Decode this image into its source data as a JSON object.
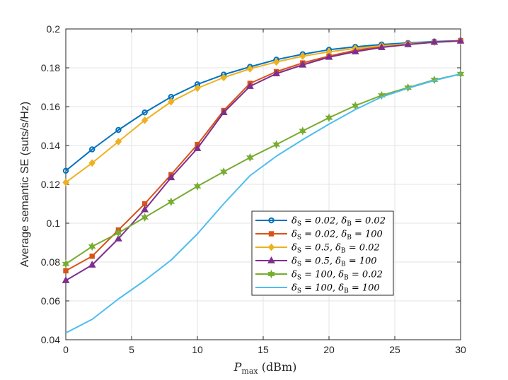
{
  "chart_data": {
    "type": "line",
    "title": "",
    "xlabel": "P_max (dBm)",
    "xlabel_main": "P",
    "xlabel_sub": "max",
    "xlabel_unit": " (dBm)",
    "ylabel": "Average semantic SE (suts/s/Hz)",
    "xlim": [
      0,
      30
    ],
    "ylim": [
      0.04,
      0.2
    ],
    "xticks": [
      0,
      5,
      10,
      15,
      20,
      25,
      30
    ],
    "yticks": [
      0.04,
      0.06,
      0.08,
      0.1,
      0.12,
      0.14,
      0.16,
      0.18,
      0.2
    ],
    "ytick_labels": [
      "0.04",
      "0.06",
      "0.08",
      "0.1",
      "0.12",
      "0.14",
      "0.16",
      "0.18",
      "0.2"
    ],
    "grid": true,
    "legend_position": "center-right",
    "x": [
      0,
      2,
      4,
      6,
      8,
      10,
      12,
      14,
      16,
      18,
      20,
      22,
      24,
      26,
      28,
      30
    ],
    "series": [
      {
        "name": "δS = 0.02, δB = 0.02",
        "delta_s": "0.02",
        "delta_b": "0.02",
        "color": "#0072BD",
        "marker": "circle",
        "values": [
          0.127,
          0.138,
          0.148,
          0.157,
          0.165,
          0.1715,
          0.1765,
          0.1805,
          0.1842,
          0.187,
          0.1893,
          0.1908,
          0.192,
          0.1928,
          0.1935,
          0.194
        ]
      },
      {
        "name": "δS = 0.02, δB = 100",
        "delta_s": "0.02",
        "delta_b": "100",
        "color": "#D95319",
        "marker": "square",
        "values": [
          0.0755,
          0.083,
          0.0965,
          0.11,
          0.125,
          0.1405,
          0.158,
          0.172,
          0.178,
          0.1825,
          0.186,
          0.189,
          0.191,
          0.1922,
          0.1932,
          0.194
        ]
      },
      {
        "name": "δS = 0.5, δB = 0.02",
        "delta_s": "0.5",
        "delta_b": "0.02",
        "color": "#EDB120",
        "marker": "diamond",
        "values": [
          0.121,
          0.131,
          0.142,
          0.153,
          0.1625,
          0.1695,
          0.175,
          0.1795,
          0.183,
          0.186,
          0.1882,
          0.19,
          0.1913,
          0.1924,
          0.1932,
          0.1938
        ]
      },
      {
        "name": "δS = 0.5, δB = 100",
        "delta_s": "0.5",
        "delta_b": "100",
        "color": "#7E2F8E",
        "marker": "triangle",
        "values": [
          0.0705,
          0.0785,
          0.092,
          0.107,
          0.1235,
          0.1385,
          0.157,
          0.1705,
          0.177,
          0.1815,
          0.1855,
          0.1883,
          0.1905,
          0.192,
          0.1932,
          0.1938
        ]
      },
      {
        "name": "δS = 100, δB = 0.02",
        "delta_s": "100",
        "delta_b": "0.02",
        "color": "#77AC30",
        "marker": "hexagram",
        "values": [
          0.079,
          0.088,
          0.095,
          0.103,
          0.111,
          0.119,
          0.1265,
          0.1338,
          0.1405,
          0.1475,
          0.1543,
          0.1605,
          0.1658,
          0.1698,
          0.1738,
          0.1768
        ]
      },
      {
        "name": "δS = 100, δB = 100",
        "delta_s": "100",
        "delta_b": "100",
        "color": "#4DBEEE",
        "marker": "none",
        "values": [
          0.0435,
          0.0505,
          0.061,
          0.0705,
          0.081,
          0.0945,
          0.11,
          0.1245,
          0.1345,
          0.143,
          0.151,
          0.1585,
          0.165,
          0.1695,
          0.1735,
          0.1768
        ]
      }
    ]
  }
}
